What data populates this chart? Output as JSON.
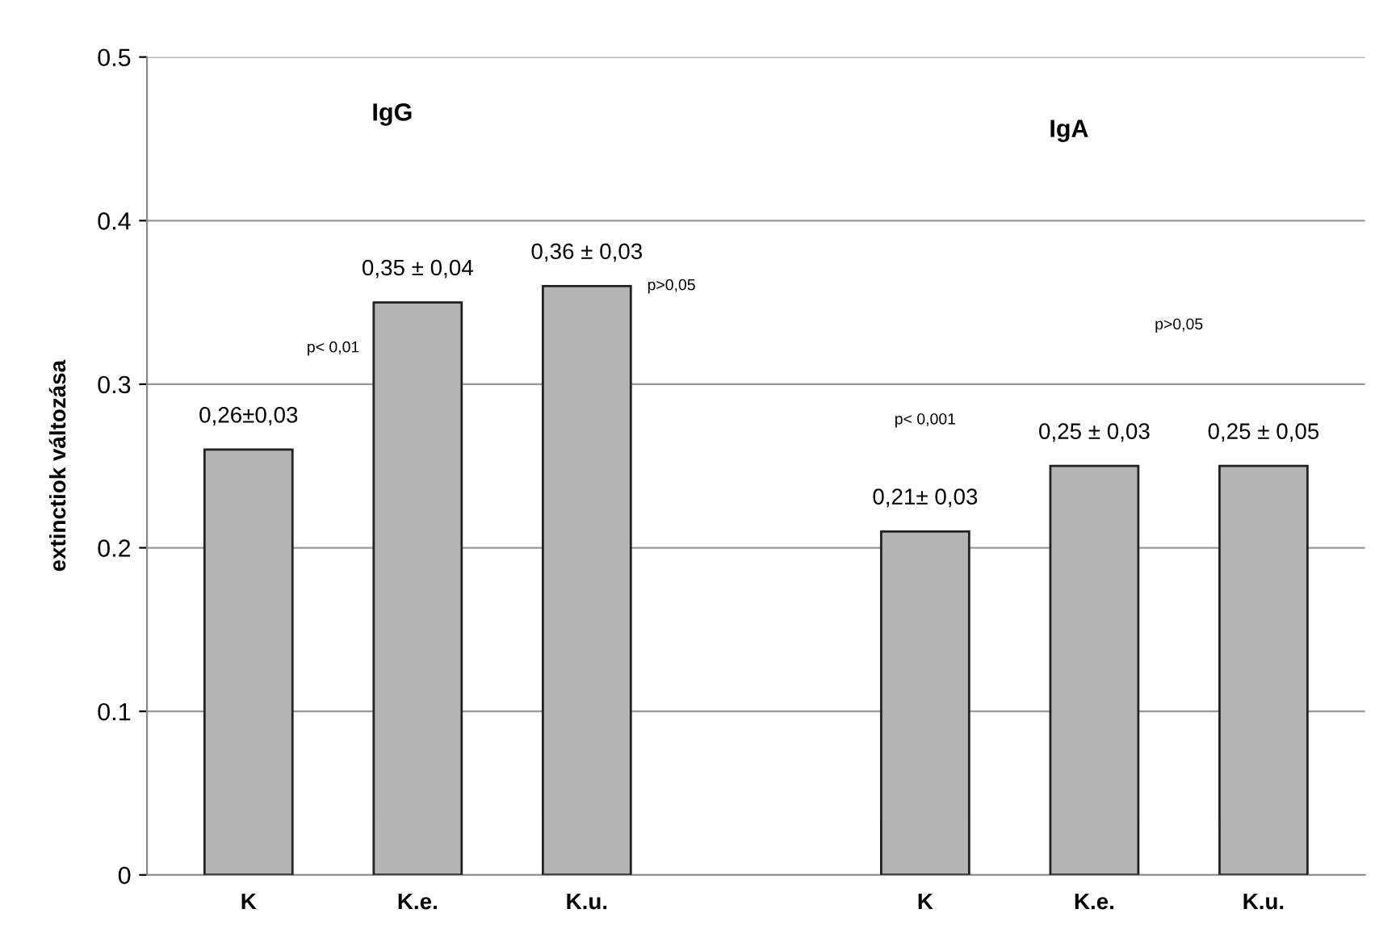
{
  "chart_data": {
    "type": "bar",
    "ylabel": "extinctiok változása",
    "categories": [
      "K",
      "K.e.",
      "K.u.",
      null,
      "K",
      "K.e.",
      "K.u."
    ],
    "values": [
      0.26,
      0.35,
      0.36,
      null,
      0.21,
      0.25,
      0.25
    ],
    "value_labels": [
      "0,26±0,03",
      "0,35 ± 0,04",
      "0,36 ± 0,03",
      null,
      "0,21± 0,03",
      "0,25 ± 0,03",
      "0,25 ± 0,05"
    ],
    "color": "#b4b4b4",
    "ylim": [
      0,
      0.5
    ],
    "yticks": [
      {
        "value": 0,
        "label": "0"
      },
      0.1,
      0.2,
      0.3,
      0.4,
      0.5
    ],
    "grid": "y",
    "annotations": [
      "IgG",
      "IgA",
      "p< 0,01",
      "p>0,05",
      "p< 0,001",
      "p>0,05"
    ]
  }
}
